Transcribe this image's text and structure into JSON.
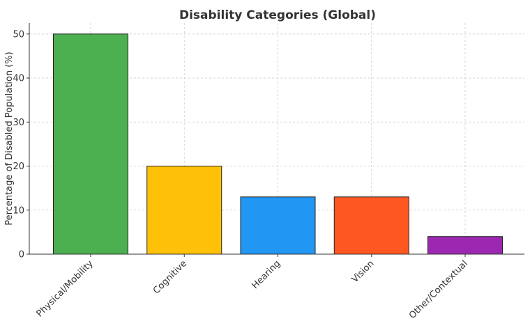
{
  "chart_data": {
    "type": "bar",
    "title": "Disability Categories (Global)",
    "xlabel": "",
    "ylabel": "Percentage of Disabled Population (%)",
    "categories": [
      "Physical/Mobility",
      "Cognitive",
      "Hearing",
      "Vision",
      "Other/Contextual"
    ],
    "values": [
      50,
      20,
      13,
      13,
      4
    ],
    "colors": [
      "#4caf50",
      "#ffc107",
      "#2196f3",
      "#ff5722",
      "#9c27b0"
    ],
    "ylim": [
      0,
      52.5
    ],
    "yticks": [
      0,
      10,
      20,
      30,
      40,
      50
    ],
    "grid": true,
    "legend": "none"
  }
}
